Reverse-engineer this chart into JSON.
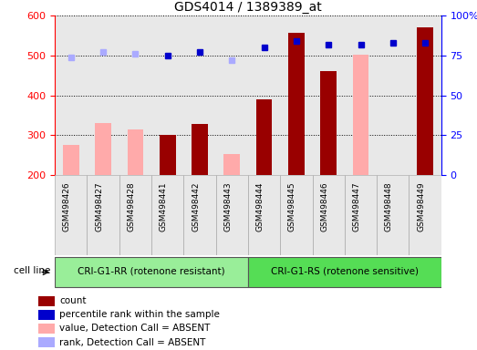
{
  "title": "GDS4014 / 1389389_at",
  "samples": [
    "GSM498426",
    "GSM498427",
    "GSM498428",
    "GSM498441",
    "GSM498442",
    "GSM498443",
    "GSM498444",
    "GSM498445",
    "GSM498446",
    "GSM498447",
    "GSM498448",
    "GSM498449"
  ],
  "group1_count": 6,
  "group2_count": 6,
  "group1_label": "CRI-G1-RR (rotenone resistant)",
  "group2_label": "CRI-G1-RS (rotenone sensitive)",
  "cell_line_label": "cell line",
  "count_values": [
    null,
    null,
    null,
    300,
    328,
    null,
    390,
    558,
    460,
    null,
    null,
    572
  ],
  "absent_value_values": [
    276,
    330,
    315,
    null,
    null,
    252,
    null,
    null,
    null,
    502,
    null,
    null
  ],
  "rank_absent_markers": [
    74,
    77,
    76,
    null,
    null,
    72,
    null,
    null,
    null,
    null,
    null,
    null
  ],
  "rank_present_markers": [
    null,
    null,
    null,
    75,
    77,
    null,
    80,
    84,
    82,
    82,
    83,
    83
  ],
  "ylim_left": [
    200,
    600
  ],
  "ylim_right": [
    0,
    100
  ],
  "yticks_left": [
    200,
    300,
    400,
    500,
    600
  ],
  "yticks_right": [
    0,
    25,
    50,
    75,
    100
  ],
  "yticklabels_right": [
    "0",
    "25",
    "50",
    "75",
    "100%"
  ],
  "color_count": "#990000",
  "color_rank_present": "#0000cc",
  "color_absent_value": "#ffaaaa",
  "color_absent_rank": "#aaaaff",
  "color_group1_bg": "#99ee99",
  "color_group2_bg": "#55dd55",
  "color_plot_bg": "#e8e8e8",
  "figsize": [
    5.23,
    3.84
  ],
  "dpi": 100,
  "legend_items": [
    [
      "#990000",
      "count"
    ],
    [
      "#0000cc",
      "percentile rank within the sample"
    ],
    [
      "#ffaaaa",
      "value, Detection Call = ABSENT"
    ],
    [
      "#aaaaff",
      "rank, Detection Call = ABSENT"
    ]
  ]
}
